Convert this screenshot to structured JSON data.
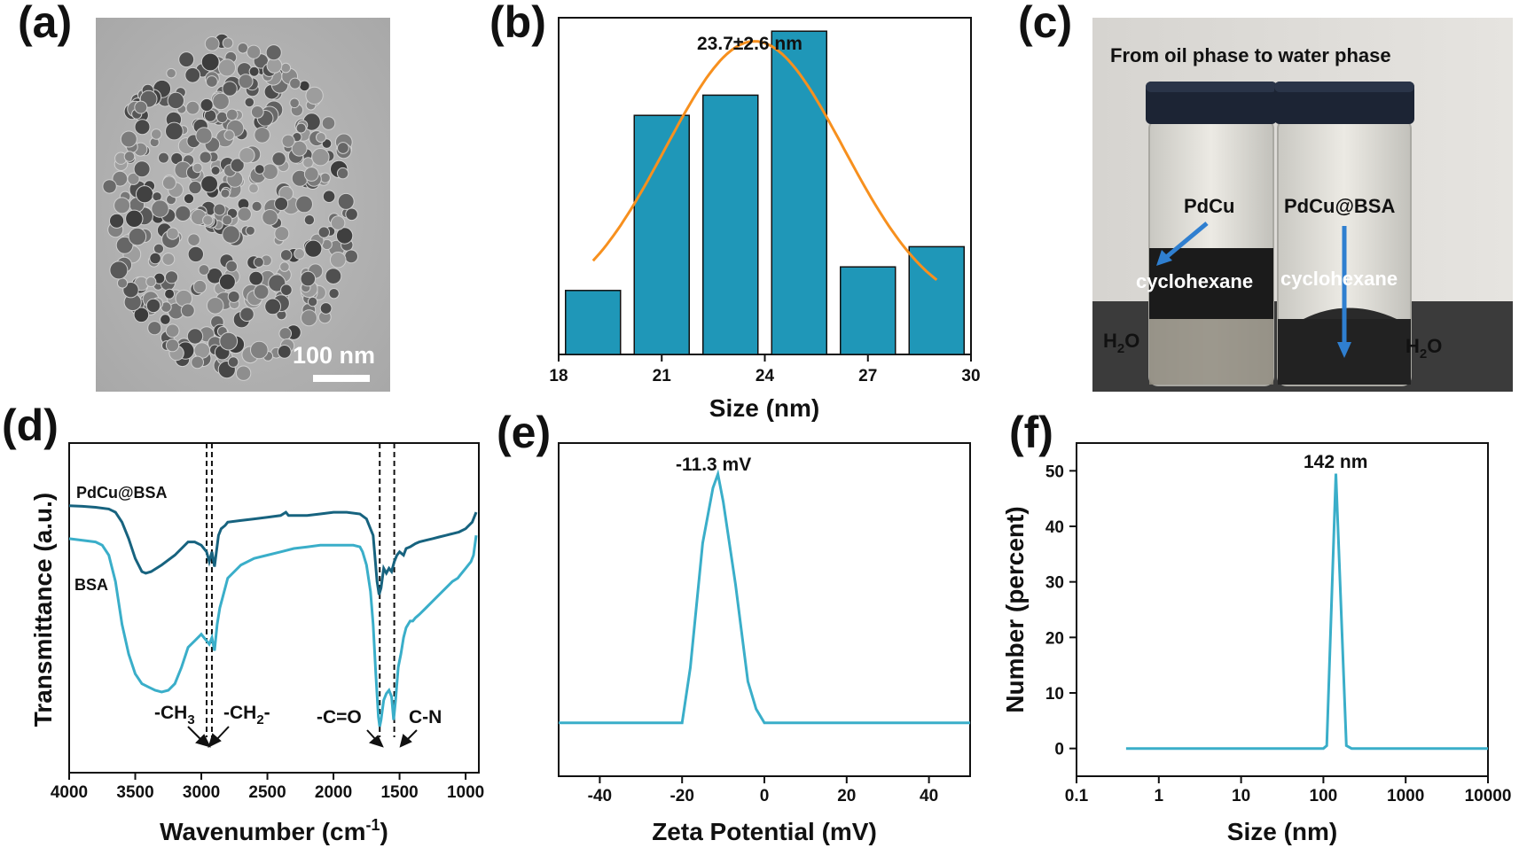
{
  "panels": {
    "a": {
      "label": "(a)",
      "image_kind": "TEM micrograph of nanoparticles",
      "scale_bar": "100 nm"
    },
    "b": {
      "label": "(b)"
    },
    "c": {
      "label": "(c)",
      "image_kind": "photo of two vials",
      "title": "From oil phase to water phase",
      "labels": {
        "left_sample": "PdCu",
        "right_sample": "PdCu@BSA",
        "left_solvent": "cyclohexane",
        "right_solvent": "cyclohexane",
        "left_water": "H2O",
        "right_water": "H2O"
      }
    },
    "d": {
      "label": "(d)"
    },
    "e": {
      "label": "(e)"
    },
    "f": {
      "label": "(f)"
    }
  },
  "chart_data": [
    {
      "id": "b",
      "type": "bar",
      "title": "",
      "xlabel": "Size (nm)",
      "ylabel": "",
      "xlim": [
        18,
        30
      ],
      "ylim": [
        0,
        100
      ],
      "xticks": [
        "18",
        "21",
        "24",
        "27",
        "30"
      ],
      "bins": [
        {
          "start": 18.2,
          "end": 19.8,
          "value": 19
        },
        {
          "start": 20.2,
          "end": 21.8,
          "value": 71
        },
        {
          "start": 22.2,
          "end": 23.8,
          "value": 77
        },
        {
          "start": 24.2,
          "end": 25.8,
          "value": 96
        },
        {
          "start": 26.2,
          "end": 27.8,
          "value": 26
        },
        {
          "start": 28.2,
          "end": 29.8,
          "value": 32
        }
      ],
      "fit": {
        "type": "gaussian",
        "mean": 23.7,
        "sd": 2.6,
        "peak": 93,
        "offset": 12,
        "x_range": [
          19.0,
          29.0
        ]
      },
      "annotation": "23.7±2.6 nm",
      "colors": {
        "bar": "#1f97b8",
        "fit": "#f7901e"
      }
    },
    {
      "id": "d",
      "type": "line",
      "title": "",
      "xlabel": "Wavenumber (cm-1)",
      "xlabel_main": "Wavenumber (cm",
      "xlabel_sup": "-1",
      "xlabel_end": ")",
      "ylabel": "Transmittance (a.u.)",
      "xlim": [
        4000,
        900
      ],
      "ylim": [
        0,
        100
      ],
      "xticks": [
        "4000",
        "3500",
        "3000",
        "2500",
        "2000",
        "1500",
        "1000"
      ],
      "series": [
        {
          "name": "PdCu@BSA",
          "color": "#17637f",
          "x": [
            4000,
            3900,
            3800,
            3700,
            3650,
            3600,
            3550,
            3500,
            3450,
            3420,
            3380,
            3300,
            3200,
            3100,
            3050,
            3000,
            2960,
            2940,
            2920,
            2900,
            2870,
            2850,
            2820,
            2800,
            2700,
            2600,
            2500,
            2400,
            2360,
            2340,
            2300,
            2200,
            2100,
            2000,
            1900,
            1800,
            1750,
            1700,
            1670,
            1655,
            1640,
            1620,
            1600,
            1580,
            1560,
            1540,
            1520,
            1500,
            1470,
            1450,
            1420,
            1400,
            1380,
            1350,
            1300,
            1250,
            1200,
            1150,
            1100,
            1050,
            1000,
            950,
            920
          ],
          "y": [
            81,
            80.8,
            80.5,
            80,
            79,
            76,
            71,
            65,
            61,
            60.5,
            61,
            63,
            66,
            70,
            70,
            69,
            67,
            64,
            67,
            62.5,
            72,
            74,
            75,
            76,
            76.5,
            77,
            77.5,
            78,
            79,
            78,
            78,
            78,
            78.5,
            79,
            79,
            78.5,
            77,
            72,
            58,
            54,
            56,
            62,
            60.5,
            62,
            61,
            64,
            66,
            67,
            66,
            68,
            68.5,
            69,
            69.5,
            70,
            70.5,
            71,
            71.5,
            72,
            72.5,
            73,
            74,
            76,
            79
          ]
        },
        {
          "name": "BSA",
          "color": "#3aaec9",
          "x": [
            4000,
            3900,
            3800,
            3750,
            3700,
            3650,
            3600,
            3550,
            3500,
            3450,
            3400,
            3350,
            3300,
            3250,
            3200,
            3150,
            3100,
            3050,
            3000,
            2980,
            2960,
            2940,
            2920,
            2900,
            2880,
            2860,
            2840,
            2800,
            2700,
            2600,
            2500,
            2400,
            2300,
            2200,
            2100,
            2000,
            1900,
            1850,
            1800,
            1780,
            1750,
            1720,
            1700,
            1680,
            1660,
            1650,
            1640,
            1620,
            1600,
            1580,
            1560,
            1545,
            1530,
            1510,
            1490,
            1470,
            1450,
            1420,
            1400,
            1380,
            1350,
            1300,
            1250,
            1200,
            1150,
            1100,
            1060,
            1040,
            1000,
            960,
            940,
            920
          ],
          "y": [
            71,
            70.5,
            70,
            69,
            66,
            58,
            45,
            36,
            30,
            27,
            26,
            25,
            24.5,
            25,
            27,
            32,
            38,
            40,
            42,
            41,
            40,
            39,
            41,
            37,
            45,
            50,
            53,
            59,
            63,
            65,
            66,
            67,
            68,
            68.5,
            69,
            69,
            69,
            69,
            68.5,
            67,
            63,
            55,
            45,
            30,
            17,
            14,
            16,
            22,
            24,
            25,
            23,
            16,
            22,
            32,
            36,
            41,
            44,
            46,
            46,
            47,
            48,
            50,
            52,
            54,
            56,
            58,
            59,
            60,
            62,
            64,
            66,
            72
          ]
        }
      ],
      "reference_lines": [
        2960,
        2920,
        1650,
        1540
      ],
      "annotations": {
        "ch3": "-CH3",
        "ch2": "-CH2-",
        "co": "-C=O",
        "cn": "C-N"
      }
    },
    {
      "id": "e",
      "type": "line",
      "title": "",
      "xlabel": "Zeta Potential (mV)",
      "ylabel": "",
      "xlim": [
        -50,
        50
      ],
      "ylim": [
        0,
        100
      ],
      "xticks": [
        "-40",
        "-20",
        "0",
        "20",
        "40"
      ],
      "series": [
        {
          "color": "#3aaec9",
          "x": [
            -50,
            -20,
            -18,
            -15,
            -12.5,
            -11.3,
            -10,
            -7,
            -4,
            -2,
            0,
            20,
            50
          ],
          "y": [
            10,
            10,
            30,
            75,
            95,
            100,
            90,
            60,
            25,
            15,
            10,
            10,
            10
          ]
        }
      ],
      "annotation": "-11.3 mV"
    },
    {
      "id": "f",
      "type": "line",
      "title": "",
      "xlabel": "Size (nm)",
      "ylabel": "Number (percent)",
      "xscale": "log",
      "xlim": [
        0.1,
        10000
      ],
      "ylim": [
        -5,
        55
      ],
      "xticks": [
        "0.1",
        "1",
        "10",
        "100",
        "1000",
        "10000"
      ],
      "yticks": [
        "0",
        "10",
        "20",
        "30",
        "40",
        "50"
      ],
      "series": [
        {
          "color": "#3aaec9",
          "x": [
            0.4,
            1,
            10,
            100,
            110,
            142,
            190,
            220,
            1000,
            10000
          ],
          "y": [
            0,
            0,
            0,
            0,
            0.5,
            49.5,
            0.5,
            0,
            0,
            0
          ]
        }
      ],
      "annotation": "142 nm"
    }
  ]
}
